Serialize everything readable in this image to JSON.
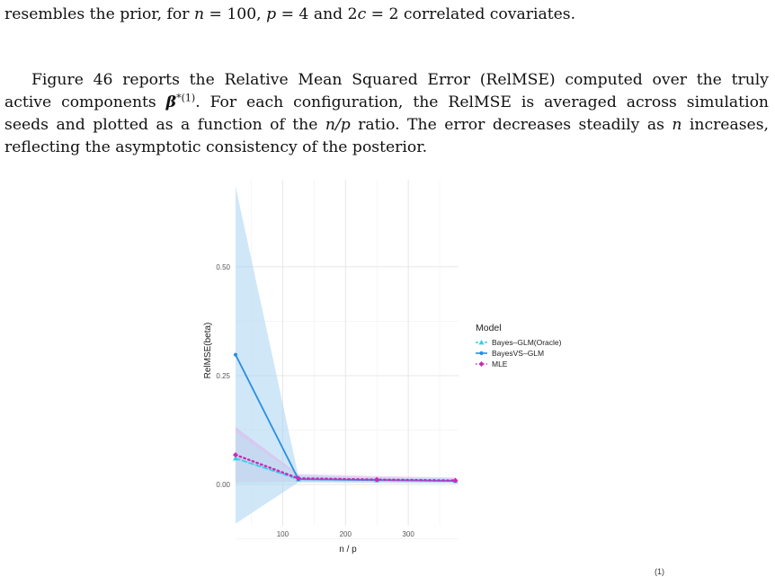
{
  "text": {
    "line_top": {
      "a": "resembles the prior, for ",
      "b": " correlated covariates."
    },
    "para": {
      "l1a": "Figure 46 reports the Relative Mean Squared Error (RelMSE) computed over the truly",
      "l2a": "active components ",
      "l2b": ". For each configuration, the RelMSE is averaged across simulation",
      "l3a": "seeds and plotted as a function of the ",
      "l3b": " ratio. The error decreases steadily as ",
      "l3c": " increases,",
      "l4": "reflecting the asymptotic consistency of the posterior."
    },
    "math": {
      "n": "n",
      "eq100": " = 100,  ",
      "p": "p",
      "eq4": " = 4 and 2",
      "c": "c",
      "eq2": " = 2",
      "beta": "β",
      "beta_sup": "*(1)",
      "np": "n/p"
    },
    "bottom_fragment": "(1)"
  },
  "chart_data": {
    "type": "line",
    "xlabel": "n / p",
    "ylabel": "RelMSE(beta)",
    "xlim": [
      25,
      380
    ],
    "ylim": [
      -0.095,
      0.7
    ],
    "x_ticks": [
      100,
      200,
      300
    ],
    "y_ticks": [
      0.0,
      0.25,
      0.5
    ],
    "y_tick_labels": [
      "0.00",
      "0.25",
      "0.50"
    ],
    "grid": true,
    "legend_title": "Model",
    "legend_position": "right",
    "x": [
      25,
      125,
      250,
      375
    ],
    "series": [
      {
        "name": "Bayes–GLM(Oracle)",
        "color": "#35d0e6",
        "marker": "triangle",
        "line": "dashed",
        "values": [
          0.06,
          0.012,
          0.01,
          0.008
        ],
        "band_low": [
          0.0,
          0.005,
          0.004,
          0.003
        ],
        "band_high": [
          0.12,
          0.02,
          0.016,
          0.013
        ]
      },
      {
        "name": "BayesVS–GLM",
        "color": "#2a8fe0",
        "marker": "dot",
        "line": "solid",
        "values": [
          0.298,
          0.012,
          0.01,
          0.008
        ],
        "band_low": [
          -0.09,
          0.005,
          0.004,
          0.003
        ],
        "band_high": [
          0.685,
          0.02,
          0.016,
          0.013
        ]
      },
      {
        "name": "MLE",
        "color": "#cc2ab8",
        "marker": "diamond",
        "line": "dotted",
        "values": [
          0.068,
          0.014,
          0.011,
          0.009
        ],
        "band_low": [
          0.005,
          0.006,
          0.004,
          0.003
        ],
        "band_high": [
          0.132,
          0.024,
          0.019,
          0.016
        ]
      }
    ]
  }
}
